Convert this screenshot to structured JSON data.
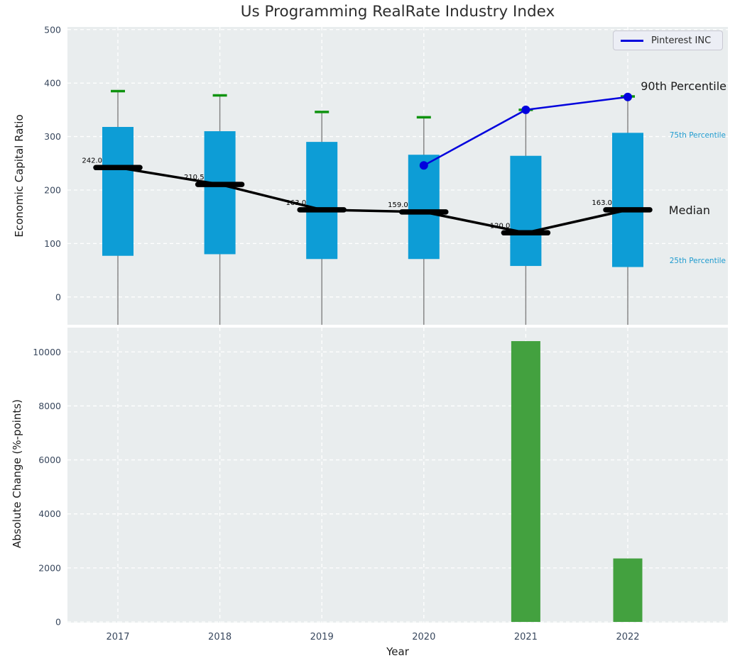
{
  "title": "Us Programming RealRate Industry Index",
  "legend": {
    "label": "Pinterest INC"
  },
  "annotations": {
    "p90": "90th Percentile",
    "p75": "75th Percentile",
    "median": "Median",
    "p25": "25th Percentile"
  },
  "axes": {
    "top": {
      "ylabel": "Economic Capital Ratio"
    },
    "bottom": {
      "ylabel": "Absolute Change (%-points)",
      "xlabel": "Year"
    }
  },
  "colors": {
    "panel_bg": "#e9edee",
    "grid": "#ffffff",
    "box_fill": "#0d9dd6",
    "cap_green": "#0f930f",
    "bar_green": "#43a13f",
    "median_black": "#000000",
    "pinterest_blue": "#0202dd",
    "tick_label": "#39485e",
    "annotation_blue": "#1f9bcf",
    "whisker_gray": "#808080",
    "median_label": "#000000"
  },
  "chart_data": [
    {
      "type": "boxplot",
      "title": "Us Programming RealRate Industry Index",
      "ylabel": "Economic Capital Ratio",
      "categories": [
        "2017",
        "2018",
        "2019",
        "2020",
        "2021",
        "2022"
      ],
      "yticks": [
        0,
        100,
        200,
        300,
        400,
        500
      ],
      "ylim": [
        -52,
        505
      ],
      "grid": true,
      "legend_position": "upper right",
      "series": [
        {
          "name": "25th Percentile",
          "values": [
            77,
            80,
            71,
            71,
            58,
            56
          ]
        },
        {
          "name": "75th Percentile",
          "values": [
            318,
            310,
            290,
            266,
            264,
            307
          ]
        },
        {
          "name": "Median",
          "values": [
            242.0,
            210.5,
            163.0,
            159.0,
            120.0,
            163.0
          ]
        },
        {
          "name": "90th Percentile",
          "values": [
            385,
            377,
            346,
            336,
            350,
            375
          ]
        }
      ],
      "median_labels": [
        "242.0",
        "210.5",
        "163.0",
        "159.0",
        "120.0",
        "163.0"
      ],
      "overlay_line": {
        "name": "Pinterest INC",
        "categories": [
          "2020",
          "2021",
          "2022"
        ],
        "values": [
          246,
          350,
          374
        ]
      }
    },
    {
      "type": "bar",
      "ylabel": "Absolute Change (%-points)",
      "xlabel": "Year",
      "categories": [
        "2017",
        "2018",
        "2019",
        "2020",
        "2021",
        "2022"
      ],
      "values": [
        null,
        null,
        null,
        null,
        10400,
        2350
      ],
      "yticks": [
        0,
        2000,
        4000,
        6000,
        8000,
        10000
      ],
      "ylim": [
        0,
        10900
      ],
      "grid": true
    }
  ]
}
